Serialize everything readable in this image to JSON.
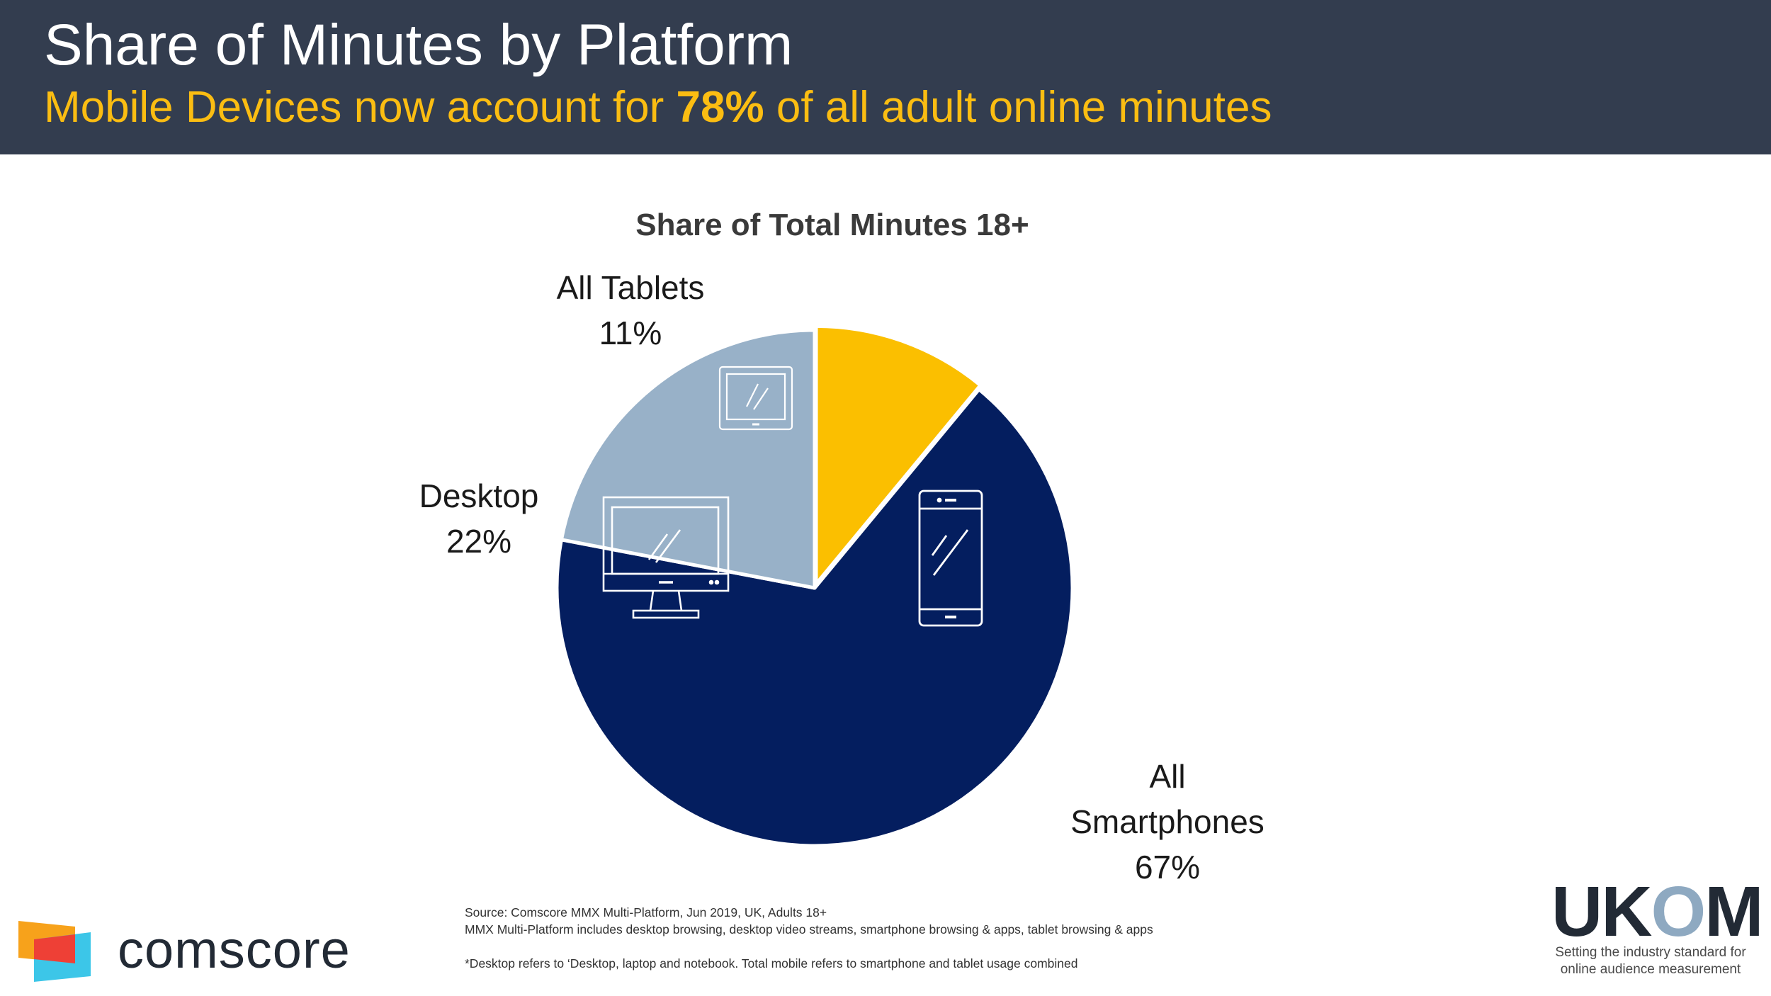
{
  "header": {
    "title": "Share of Minutes by Platform",
    "subtitle_pre": "Mobile Devices now account for ",
    "subtitle_bold": "78%",
    "subtitle_post": " of all adult online minutes"
  },
  "colors": {
    "header_bg": "#333d4f",
    "subtitle": "#fbbd12",
    "smartphones": "#041e5f",
    "desktop": "#98b1c8",
    "tablets": "#fbbf00"
  },
  "chart_data": {
    "type": "pie",
    "title": "Share of Total Minutes 18+",
    "slices": [
      {
        "name": "All Tablets",
        "value": 11,
        "label": "11%",
        "color": "#fbbf00",
        "icon": "tablet-icon"
      },
      {
        "name": "All Smartphones",
        "value": 67,
        "label": "67%",
        "color": "#041e5f",
        "icon": "smartphone-icon"
      },
      {
        "name": "Desktop",
        "value": 22,
        "label": "22%",
        "color": "#98b1c8",
        "icon": "desktop-monitor-icon"
      }
    ]
  },
  "labels": {
    "tablets_line1": "All Tablets",
    "tablets_line2": "11%",
    "desktop_line1": "Desktop",
    "desktop_line2": "22%",
    "smartphones_line1": "All",
    "smartphones_line2": "Smartphones",
    "smartphones_line3": "67%"
  },
  "footer": {
    "source": "Source: Comscore MMX Multi-Platform, Jun  2019, UK, Adults 18+",
    "definition": "MMX Multi-Platform includes desktop browsing, desktop video streams, smartphone browsing & apps, tablet browsing & apps",
    "note": "*Desktop refers to ‘Desktop, laptop and notebook. Total mobile refers to smartphone and tablet usage combined",
    "comscore_logo": "comscore",
    "ukom_logo": "UKOM",
    "ukom_tagline_1": "Setting the industry standard for",
    "ukom_tagline_2": "online audience measurement"
  }
}
